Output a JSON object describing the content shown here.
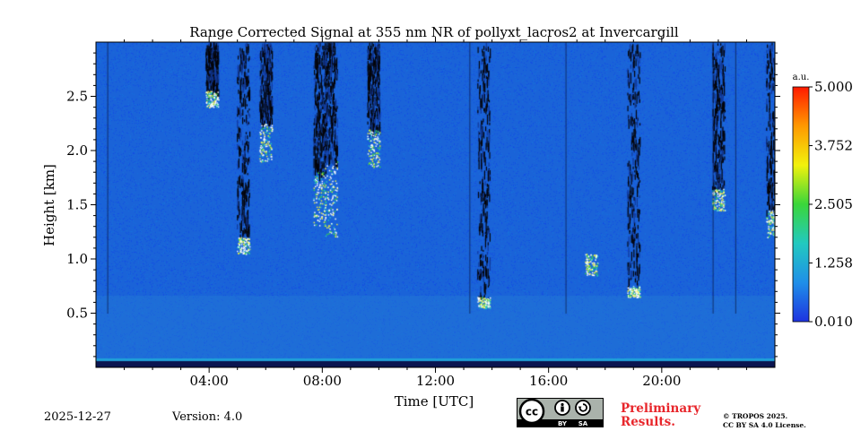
{
  "chart_data": {
    "type": "heatmap",
    "title": "Range Corrected Signal at 355 nm NR of pollyxt_lacros2 at Invercargill",
    "xlabel": "Time [UTC]",
    "ylabel": "Height [km]",
    "xlim": [
      0,
      24
    ],
    "ylim": [
      0,
      3.0
    ],
    "x_ticks": [
      4,
      8,
      12,
      16,
      20
    ],
    "x_tick_labels": [
      "04:00",
      "08:00",
      "12:00",
      "16:00",
      "20:00"
    ],
    "y_ticks": [
      0.5,
      1.0,
      1.5,
      2.0,
      2.5
    ],
    "y_tick_labels": [
      "0.5",
      "1.0",
      "1.5",
      "2.0",
      "2.5"
    ],
    "colorbar": {
      "unit": "a.u.",
      "min": 0.01,
      "max": 5.0,
      "ticks": [
        0.01,
        1.258,
        2.505,
        3.752,
        5.0
      ],
      "tick_labels": [
        "0.010",
        "1.258",
        "2.505",
        "3.752",
        "5.000"
      ],
      "colors": [
        "#1e33e0",
        "#1f8fe8",
        "#22c9c0",
        "#3ad63a",
        "#f2f20c",
        "#ff9900",
        "#ff1a00"
      ]
    },
    "background_color": "#1a63d8",
    "cloud_features": [
      {
        "time": 4.1,
        "height_base": 2.4,
        "height_top": 2.55,
        "above_signal": "no_data"
      },
      {
        "time": 5.2,
        "height_base": 1.05,
        "height_top": 1.2,
        "above_signal": "no_data"
      },
      {
        "time": 6.0,
        "height_base": 1.9,
        "height_top": 2.25,
        "above_signal": "no_data"
      },
      {
        "time": 7.9,
        "height_base": 1.3,
        "height_top": 1.8,
        "above_signal": "no_data"
      },
      {
        "time": 8.3,
        "height_base": 1.2,
        "height_top": 1.9,
        "above_signal": "no_data"
      },
      {
        "time": 9.8,
        "height_base": 1.85,
        "height_top": 2.2,
        "above_signal": "no_data"
      },
      {
        "time": 13.7,
        "height_base": 0.55,
        "height_top": 0.65,
        "above_signal": "no_data"
      },
      {
        "time": 17.5,
        "height_base": 0.85,
        "height_top": 1.05,
        "above_signal": "signal"
      },
      {
        "time": 19.0,
        "height_base": 0.65,
        "height_top": 0.75,
        "above_signal": "no_data"
      },
      {
        "time": 22.0,
        "height_base": 1.45,
        "height_top": 1.65,
        "above_signal": "no_data"
      },
      {
        "time": 23.9,
        "height_base": 1.2,
        "height_top": 1.45,
        "above_signal": "no_data"
      }
    ]
  },
  "footer": {
    "date": "2025-12-27",
    "version": "Version: 4.0",
    "preliminary_line1": "Preliminary",
    "preliminary_line2": "Results.",
    "license_line1": "© TROPOS 2025.",
    "license_line2": "CC BY SA 4.0 License.",
    "badge_cc": "cc",
    "badge_by": "BY",
    "badge_sa": "SA"
  }
}
